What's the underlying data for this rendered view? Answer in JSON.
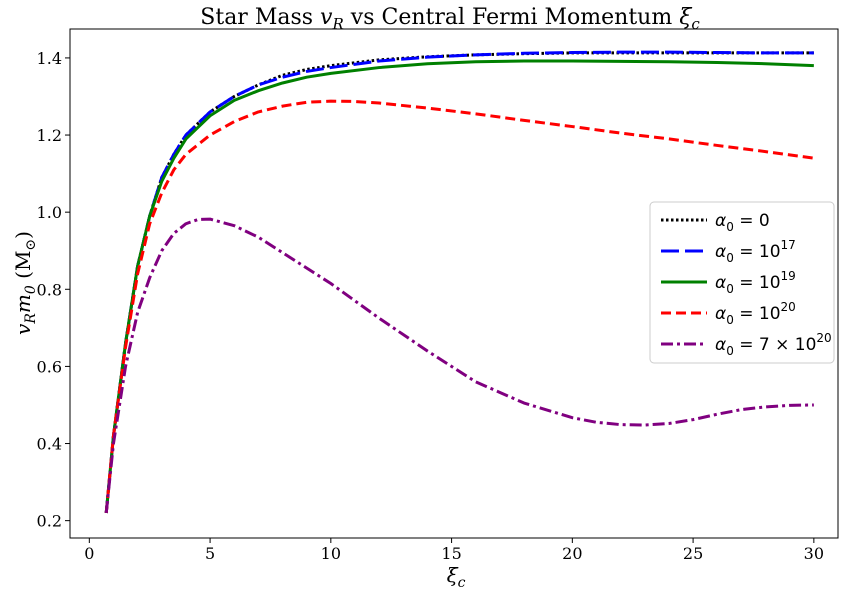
{
  "chart_data": {
    "type": "line",
    "title_plain": "Star Mass ",
    "title_var": "v",
    "title_var_sub": "R",
    "title_mid": " vs Central Fermi Momentum ",
    "title_xi": "ξ",
    "title_xi_sub": "c",
    "xlabel_main": "ξ",
    "xlabel_sub": "c",
    "ylabel_v": "v",
    "ylabel_v_sub": "R",
    "ylabel_m": "m",
    "ylabel_m_sub": "0",
    "ylabel_unit": " (M",
    "ylabel_unit_sub": "⊙",
    "ylabel_close": ")",
    "xlim": [
      -0.8,
      31.0
    ],
    "ylim": [
      0.155,
      1.475
    ],
    "xticks": [
      0,
      5,
      10,
      15,
      20,
      25,
      30
    ],
    "yticks": [
      0.2,
      0.4,
      0.6,
      0.8,
      1.0,
      1.2,
      1.4
    ],
    "grid": false,
    "legend_placement": "center-right",
    "series": [
      {
        "name": "α0 = 0",
        "label_base": "α",
        "label_sub": "0",
        "label_eq": " = 0",
        "label_exp": "",
        "label_tail": "",
        "color": "#000000",
        "style": "dotted",
        "x": [
          0.7,
          1.0,
          1.5,
          2.0,
          2.5,
          3.0,
          3.5,
          4.0,
          5.0,
          6.0,
          7.0,
          8.0,
          9.0,
          10.0,
          12.0,
          14.0,
          16.0,
          18.0,
          20.0,
          22.0,
          24.0,
          26.0,
          28.0,
          30.0
        ],
        "y": [
          0.22,
          0.42,
          0.66,
          0.86,
          0.99,
          1.09,
          1.15,
          1.2,
          1.26,
          1.3,
          1.33,
          1.355,
          1.37,
          1.38,
          1.395,
          1.403,
          1.408,
          1.411,
          1.413,
          1.413,
          1.413,
          1.413,
          1.413,
          1.413
        ]
      },
      {
        "name": "α0 = 10^17",
        "label_base": "α",
        "label_sub": "0",
        "label_eq": " = 10",
        "label_exp": "17",
        "label_tail": "",
        "color": "#0000ff",
        "style": "dashed-long",
        "x": [
          0.7,
          1.0,
          1.5,
          2.0,
          2.5,
          3.0,
          3.5,
          4.0,
          5.0,
          6.0,
          7.0,
          8.0,
          9.0,
          10.0,
          12.0,
          14.0,
          16.0,
          18.0,
          20.0,
          22.0,
          24.0,
          26.0,
          28.0,
          30.0
        ],
        "y": [
          0.22,
          0.42,
          0.66,
          0.86,
          0.99,
          1.09,
          1.15,
          1.2,
          1.26,
          1.3,
          1.33,
          1.35,
          1.365,
          1.375,
          1.392,
          1.402,
          1.408,
          1.412,
          1.414,
          1.415,
          1.415,
          1.414,
          1.413,
          1.413
        ]
      },
      {
        "name": "α0 = 10^19",
        "label_base": "α",
        "label_sub": "0",
        "label_eq": " = 10",
        "label_exp": "19",
        "label_tail": "",
        "color": "#008000",
        "style": "solid",
        "x": [
          0.7,
          1.0,
          1.5,
          2.0,
          2.5,
          3.0,
          3.5,
          4.0,
          5.0,
          6.0,
          7.0,
          8.0,
          9.0,
          10.0,
          12.0,
          14.0,
          16.0,
          18.0,
          20.0,
          22.0,
          24.0,
          26.0,
          28.0,
          30.0
        ],
        "y": [
          0.22,
          0.42,
          0.66,
          0.86,
          0.99,
          1.08,
          1.14,
          1.19,
          1.25,
          1.29,
          1.315,
          1.335,
          1.35,
          1.36,
          1.375,
          1.385,
          1.39,
          1.392,
          1.392,
          1.391,
          1.39,
          1.388,
          1.385,
          1.38
        ]
      },
      {
        "name": "α0 = 10^20",
        "label_base": "α",
        "label_sub": "0",
        "label_eq": " = 10",
        "label_exp": "20",
        "label_tail": "",
        "color": "#ff0000",
        "style": "dashed",
        "x": [
          0.7,
          1.0,
          1.5,
          2.0,
          2.5,
          3.0,
          3.5,
          4.0,
          5.0,
          6.0,
          7.0,
          8.0,
          9.0,
          10.0,
          11.0,
          12.0,
          14.0,
          16.0,
          18.0,
          20.0,
          22.0,
          24.0,
          26.0,
          28.0,
          30.0
        ],
        "y": [
          0.22,
          0.42,
          0.65,
          0.84,
          0.97,
          1.05,
          1.11,
          1.15,
          1.2,
          1.235,
          1.26,
          1.275,
          1.285,
          1.288,
          1.287,
          1.283,
          1.27,
          1.255,
          1.238,
          1.222,
          1.205,
          1.19,
          1.173,
          1.157,
          1.14
        ]
      },
      {
        "name": "α0 = 7 × 10^20",
        "label_base": "α",
        "label_sub": "0",
        "label_eq": " = 7 × 10",
        "label_exp": "20",
        "label_tail": "",
        "color": "#800080",
        "style": "dashdot",
        "x": [
          0.7,
          1.0,
          1.5,
          2.0,
          2.5,
          3.0,
          3.5,
          4.0,
          4.5,
          5.0,
          6.0,
          7.0,
          8.0,
          10.0,
          12.0,
          14.0,
          16.0,
          18.0,
          20.0,
          21.0,
          22.0,
          23.0,
          24.0,
          25.0,
          26.0,
          27.0,
          28.0,
          29.0,
          30.0
        ],
        "y": [
          0.22,
          0.4,
          0.6,
          0.74,
          0.83,
          0.9,
          0.945,
          0.97,
          0.981,
          0.982,
          0.965,
          0.935,
          0.895,
          0.815,
          0.725,
          0.64,
          0.56,
          0.505,
          0.467,
          0.455,
          0.449,
          0.448,
          0.452,
          0.462,
          0.476,
          0.488,
          0.495,
          0.499,
          0.5
        ]
      }
    ]
  }
}
